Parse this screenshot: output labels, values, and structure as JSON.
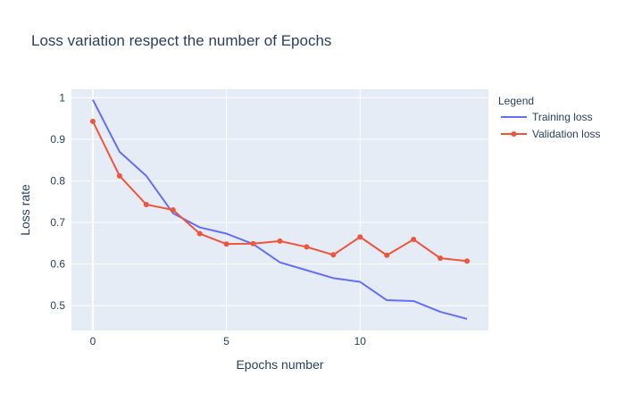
{
  "chart_data": {
    "type": "line",
    "title": "Loss variation respect the number of Epochs",
    "xlabel": "Epochs number",
    "ylabel": "Loss rate",
    "xlim": [
      -0.8,
      14.8
    ],
    "ylim": [
      0.44,
      1.02
    ],
    "x_ticks": [
      0,
      5,
      10
    ],
    "y_ticks": [
      0.5,
      0.6,
      0.7,
      0.8,
      0.9,
      1
    ],
    "y_tick_labels": [
      "0.5",
      "0.6",
      "0.7",
      "0.8",
      "0.9",
      "1"
    ],
    "grid": true,
    "legend": {
      "title": "Legend",
      "placement": "right"
    },
    "x": [
      0,
      1,
      2,
      3,
      4,
      5,
      6,
      7,
      8,
      9,
      10,
      11,
      12,
      13,
      14
    ],
    "series": [
      {
        "name": "Training loss",
        "color": "#636efa",
        "mode": "lines",
        "values": [
          0.995,
          0.87,
          0.812,
          0.722,
          0.688,
          0.673,
          0.648,
          0.604,
          0.585,
          0.566,
          0.557,
          0.513,
          0.511,
          0.485,
          0.468
        ]
      },
      {
        "name": "Validation loss",
        "color": "#ef553b",
        "mode": "lines+markers",
        "values": [
          0.943,
          0.812,
          0.743,
          0.73,
          0.673,
          0.648,
          0.649,
          0.655,
          0.641,
          0.622,
          0.665,
          0.621,
          0.659,
          0.614,
          0.607
        ]
      }
    ]
  }
}
